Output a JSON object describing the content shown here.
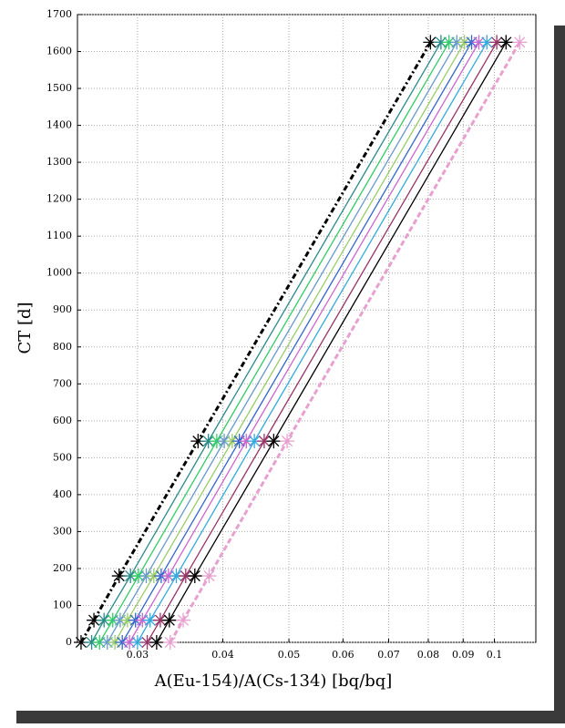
{
  "chart_data": {
    "type": "line",
    "xlabel": "A(Eu-154)/A(Cs-134)  [bq/bq]",
    "ylabel": "CT [d]",
    "xscale": "log",
    "xlim": [
      0.0245,
      0.115
    ],
    "xticks": [
      0.03,
      0.04,
      0.05,
      0.06,
      0.07,
      0.08,
      0.09,
      0.1
    ],
    "ylim": [
      0,
      1700
    ],
    "yticks": [
      0,
      100,
      200,
      300,
      400,
      500,
      600,
      700,
      800,
      900,
      1000,
      1100,
      1200,
      1300,
      1400,
      1500,
      1600,
      1700
    ],
    "grid": true,
    "y": [
      0,
      60,
      180,
      545,
      1625
    ],
    "series": [
      {
        "color": "#000000",
        "line_style": "dashdot",
        "x": [
          0.0248,
          0.0259,
          0.0282,
          0.0368,
          0.0806
        ]
      },
      {
        "color": "#2a8a8a",
        "line_style": "solid",
        "x": [
          0.0257,
          0.0268,
          0.0293,
          0.0381,
          0.0835
        ]
      },
      {
        "color": "#33cc66",
        "line_style": "solid",
        "x": [
          0.0264,
          0.0276,
          0.0301,
          0.0392,
          0.0858
        ]
      },
      {
        "color": "#6699cc",
        "line_style": "solid",
        "x": [
          0.0271,
          0.0283,
          0.0309,
          0.0402,
          0.0881
        ]
      },
      {
        "color": "#99cc66",
        "line_style": "solid",
        "x": [
          0.0278,
          0.029,
          0.0317,
          0.0413,
          0.0904
        ]
      },
      {
        "color": "#3366cc",
        "line_style": "solid",
        "x": [
          0.0285,
          0.0298,
          0.0325,
          0.0423,
          0.0926
        ]
      },
      {
        "color": "#cc66cc",
        "line_style": "solid",
        "x": [
          0.0292,
          0.0305,
          0.0333,
          0.0433,
          0.0949
        ]
      },
      {
        "color": "#33aadd",
        "line_style": "solid",
        "x": [
          0.03,
          0.0313,
          0.0342,
          0.0445,
          0.0975
        ]
      },
      {
        "color": "#993366",
        "line_style": "solid",
        "x": [
          0.031,
          0.0324,
          0.0353,
          0.046,
          0.1008
        ]
      },
      {
        "color": "#000000",
        "line_style": "solid",
        "x": [
          0.032,
          0.0334,
          0.0364,
          0.0475,
          0.104
        ]
      },
      {
        "color": "#e8a0d0",
        "line_style": "dashed",
        "x": [
          0.0335,
          0.035,
          0.0382,
          0.0497,
          0.1089
        ]
      }
    ]
  }
}
